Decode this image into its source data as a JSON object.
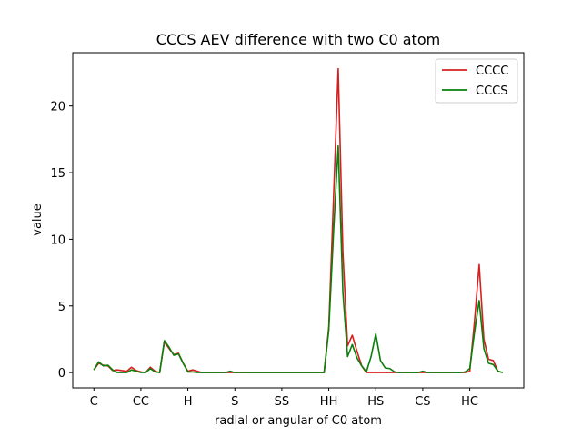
{
  "chart_data": {
    "type": "line",
    "title": "CCCS AEV difference with two C0 atom",
    "xlabel": "radial or angular of C0 atom",
    "ylabel": "value",
    "xlim": [
      -4.5,
      91.5
    ],
    "ylim": [
      -1.15,
      24.0
    ],
    "x_ticks": [
      {
        "x": 0,
        "label": "C"
      },
      {
        "x": 10,
        "label": "CC"
      },
      {
        "x": 20,
        "label": "H"
      },
      {
        "x": 30,
        "label": "S"
      },
      {
        "x": 40,
        "label": "SS"
      },
      {
        "x": 50,
        "label": "HH"
      },
      {
        "x": 60,
        "label": "HS"
      },
      {
        "x": 70,
        "label": "CS"
      },
      {
        "x": 80,
        "label": "HC"
      }
    ],
    "y_ticks": [
      0,
      5,
      10,
      15,
      20
    ],
    "legend_position": "top-right",
    "series": [
      {
        "name": "CCCC",
        "color": "#d62020",
        "values": [
          0.2,
          0.7,
          0.55,
          0.5,
          0.15,
          0.2,
          0.15,
          0.1,
          0.4,
          0.15,
          0.05,
          0.0,
          0.4,
          0.1,
          0.0,
          2.3,
          1.8,
          1.35,
          1.45,
          0.7,
          0.1,
          0.2,
          0.1,
          0.0,
          0.0,
          0.0,
          0.0,
          0.0,
          0.0,
          0.0,
          0.0,
          0.0,
          0.0,
          0.0,
          0.0,
          0.0,
          0.0,
          0.0,
          0.0,
          0.0,
          0.0,
          0.0,
          0.0,
          0.0,
          0.0,
          0.0,
          0.0,
          0.0,
          0.0,
          0.0,
          3.4,
          13.0,
          22.8,
          9.0,
          2.0,
          2.8,
          1.6,
          0.5,
          0.0,
          0.0,
          0.0,
          0.0,
          0.0,
          0.0,
          0.0,
          0.0,
          0.0,
          0.0,
          0.0,
          0.0,
          0.0,
          0.0,
          0.0,
          0.0,
          0.0,
          0.0,
          0.0,
          0.0,
          0.0,
          0.0,
          0.1,
          3.8,
          8.1,
          2.5,
          1.0,
          0.9,
          0.1,
          0.0
        ]
      },
      {
        "name": "CCCS",
        "color": "#0a800a",
        "values": [
          0.2,
          0.8,
          0.5,
          0.55,
          0.2,
          0.0,
          0.0,
          0.0,
          0.2,
          0.1,
          0.0,
          0.0,
          0.3,
          0.05,
          0.0,
          2.4,
          1.9,
          1.3,
          1.4,
          0.7,
          0.05,
          0.05,
          0.0,
          0.0,
          0.0,
          0.0,
          0.0,
          0.0,
          0.0,
          0.1,
          0.0,
          0.0,
          0.0,
          0.0,
          0.0,
          0.0,
          0.0,
          0.0,
          0.0,
          0.0,
          0.0,
          0.0,
          0.0,
          0.0,
          0.0,
          0.0,
          0.0,
          0.0,
          0.0,
          0.0,
          3.2,
          10.5,
          17.0,
          6.0,
          1.2,
          2.1,
          1.1,
          0.5,
          0.05,
          1.2,
          2.9,
          0.9,
          0.35,
          0.3,
          0.05,
          0.0,
          0.0,
          0.0,
          0.0,
          0.0,
          0.1,
          0.0,
          0.0,
          0.0,
          0.0,
          0.0,
          0.0,
          0.0,
          0.0,
          0.05,
          0.3,
          3.0,
          5.4,
          1.8,
          0.7,
          0.6,
          0.1,
          0.0
        ]
      }
    ]
  }
}
